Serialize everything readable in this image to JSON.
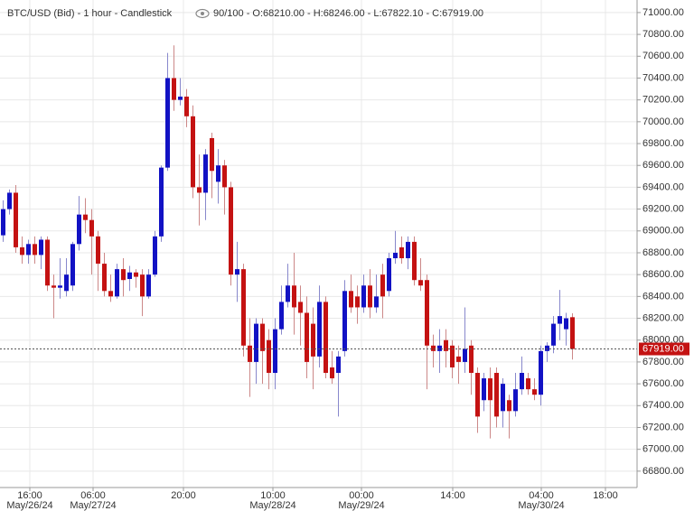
{
  "chart_data": {
    "type": "candlestick",
    "title": "BTC/USD (Bid) - 1 hour - Candlestick",
    "subtitle": "90/100 - O:68210.00 - H:68246.00 - L:67822.10 - C:67919.00",
    "up_color": "#1212c4",
    "down_color": "#c41212",
    "open": [
      68960,
      69200,
      69350,
      68850,
      68780,
      68880,
      68780,
      68920,
      68500,
      68480,
      68450,
      68500,
      68880,
      69150,
      69100,
      68950,
      68700,
      68450,
      68400,
      68650,
      68560,
      68620,
      68600,
      68400,
      68600,
      68950,
      69580,
      70400,
      70200,
      70230,
      70050,
      69400,
      69350,
      69850,
      69450,
      69600,
      69400,
      68600,
      68650,
      67950,
      67800,
      68150,
      68000,
      67700,
      68100,
      68350,
      68500,
      68350,
      68250,
      68150,
      67850,
      68350,
      67750,
      67700,
      67900,
      68450,
      68400,
      68300,
      68500,
      68300,
      68600,
      68450,
      68750,
      68850,
      68750,
      68900,
      68550,
      68550,
      67950,
      67900,
      68000,
      67950,
      67850,
      67800,
      67950,
      67700,
      67450,
      67650,
      67700,
      67350,
      67450,
      67350,
      67550,
      67650,
      67550,
      67500,
      67900,
      67950,
      68150,
      68100,
      68210
    ],
    "high": [
      69280,
      69380,
      69420,
      68950,
      68920,
      68950,
      68950,
      68950,
      68600,
      68750,
      68750,
      68900,
      69320,
      69300,
      69200,
      69000,
      68800,
      68600,
      68700,
      68750,
      68680,
      68650,
      68650,
      68650,
      69000,
      69600,
      70630,
      70700,
      70400,
      70300,
      70150,
      69700,
      69750,
      69900,
      69750,
      69650,
      69450,
      68900,
      68700,
      68200,
      68200,
      68200,
      68100,
      68200,
      68500,
      68700,
      68800,
      68500,
      68400,
      68300,
      68500,
      68400,
      67900,
      67900,
      68550,
      68600,
      68500,
      68600,
      68650,
      68600,
      68700,
      68800,
      69000,
      68950,
      68950,
      68950,
      68750,
      68600,
      68050,
      68100,
      68100,
      68000,
      67950,
      68300,
      68000,
      67750,
      67700,
      67750,
      67750,
      67650,
      67500,
      67700,
      67850,
      67700,
      67650,
      67950,
      67980,
      68220,
      68460,
      68250,
      68246
    ],
    "low": [
      68900,
      69150,
      68800,
      68700,
      68700,
      68700,
      68650,
      68450,
      68200,
      68380,
      68400,
      68450,
      68820,
      68980,
      68600,
      68450,
      68400,
      68350,
      68380,
      68400,
      68450,
      68480,
      68220,
      68380,
      68580,
      68900,
      69550,
      70100,
      70150,
      69950,
      69300,
      69050,
      69100,
      69300,
      69250,
      69150,
      68500,
      68350,
      67850,
      67480,
      67600,
      67600,
      67550,
      67550,
      68050,
      68300,
      68050,
      67950,
      67650,
      67550,
      67750,
      67650,
      67600,
      67300,
      67850,
      68250,
      68150,
      68250,
      68200,
      68250,
      68200,
      68400,
      68700,
      68700,
      68650,
      68500,
      68450,
      67550,
      67750,
      67700,
      67750,
      67650,
      67600,
      67700,
      67500,
      67150,
      67350,
      67100,
      67200,
      67200,
      67100,
      67300,
      67500,
      67500,
      67450,
      67400,
      67800,
      67880,
      68000,
      67950,
      67822.1
    ],
    "close": [
      69200,
      69350,
      68850,
      68780,
      68880,
      68780,
      68920,
      68500,
      68480,
      68500,
      68600,
      68880,
      69150,
      69100,
      68950,
      68700,
      68450,
      68400,
      68650,
      68550,
      68620,
      68580,
      68400,
      68600,
      68950,
      69580,
      70400,
      70200,
      70230,
      70050,
      69400,
      69350,
      69700,
      69550,
      69600,
      69400,
      68600,
      68650,
      67950,
      67800,
      68150,
      67900,
      67700,
      68100,
      68350,
      68500,
      68300,
      68250,
      67800,
      67850,
      68350,
      67700,
      67650,
      67850,
      68450,
      68300,
      68300,
      68500,
      68300,
      68400,
      68400,
      68750,
      68800,
      68750,
      68900,
      68550,
      68500,
      67950,
      67900,
      67950,
      67900,
      67750,
      67800,
      67920,
      67700,
      67300,
      67650,
      67450,
      67300,
      67600,
      67350,
      67550,
      67700,
      67550,
      67500,
      67900,
      67950,
      68150,
      68220,
      68200,
      67919
    ],
    "last_price": {
      "value": 67919,
      "label": "67919.00"
    },
    "ylim": [
      66650,
      71115
    ],
    "yticks": [
      {
        "value": 66800,
        "label": "66800.00"
      },
      {
        "value": 67000,
        "label": "67000.00"
      },
      {
        "value": 67200,
        "label": "67200.00"
      },
      {
        "value": 67400,
        "label": "67400.00"
      },
      {
        "value": 67600,
        "label": "67600.00"
      },
      {
        "value": 67800,
        "label": "67800.00"
      },
      {
        "value": 68000,
        "label": "68000.00"
      },
      {
        "value": 68200,
        "label": "68200.00"
      },
      {
        "value": 68400,
        "label": "68400.00"
      },
      {
        "value": 68600,
        "label": "68600.00"
      },
      {
        "value": 68800,
        "label": "68800.00"
      },
      {
        "value": 69000,
        "label": "69000.00"
      },
      {
        "value": 69200,
        "label": "69200.00"
      },
      {
        "value": 69400,
        "label": "69400.00"
      },
      {
        "value": 69600,
        "label": "69600.00"
      },
      {
        "value": 69800,
        "label": "69800.00"
      },
      {
        "value": 70000,
        "label": "70000.00"
      },
      {
        "value": 70200,
        "label": "70200.00"
      },
      {
        "value": 70400,
        "label": "70400.00"
      },
      {
        "value": 70600,
        "label": "70600.00"
      },
      {
        "value": 70800,
        "label": "70800.00"
      },
      {
        "value": 71000,
        "label": "71000.00"
      }
    ],
    "xlabels": [
      {
        "time": "16:00",
        "date": "May/26/24"
      },
      {
        "time": "06:00",
        "date": "May/27/24"
      },
      {
        "time": "20:00"
      },
      {
        "time": "10:00",
        "date": "May/28/24"
      },
      {
        "time": "00:00",
        "date": "May/29/24"
      },
      {
        "time": "14:00"
      },
      {
        "time": "04:00",
        "date": "May/30/24"
      },
      {
        "time": "18:00"
      }
    ],
    "grid": true
  }
}
